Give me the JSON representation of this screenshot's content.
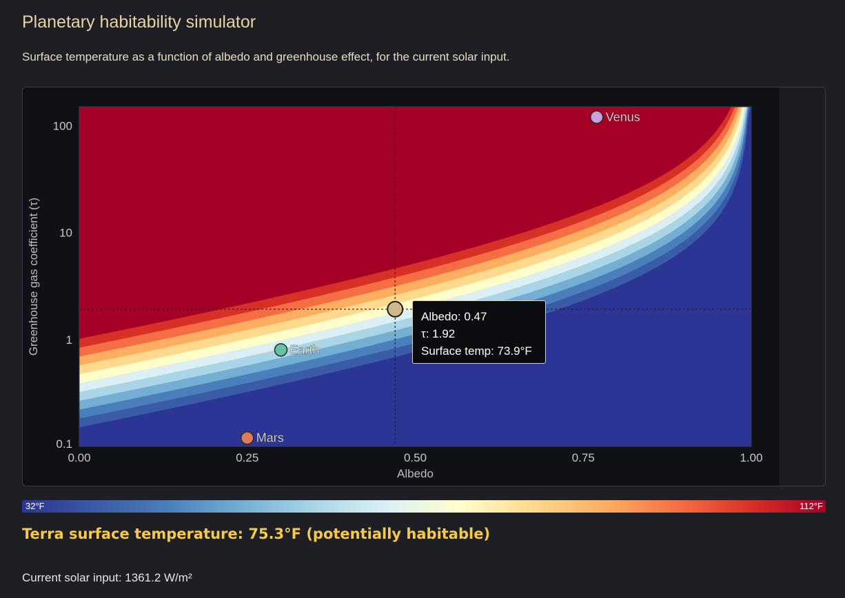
{
  "header": {
    "title": "Planetary habitability simulator",
    "subtitle": "Surface temperature as a function of albedo and greenhouse effect, for the current solar input."
  },
  "chart_data": {
    "type": "heatmap",
    "title": "",
    "xlabel": "Albedo",
    "ylabel": "Greenhouse gas coefficient (τ)",
    "xlim": [
      0,
      1
    ],
    "ylim": [
      0.1,
      150
    ],
    "y_scale": "log",
    "x_ticks": [
      "0.00",
      "0.25",
      "0.50",
      "0.75",
      "1.00"
    ],
    "x_tick_values": [
      0,
      0.25,
      0.5,
      0.75,
      1.0
    ],
    "y_ticks": [
      "0.1",
      "1",
      "10",
      "100"
    ],
    "y_tick_values": [
      0.1,
      1,
      10,
      100
    ],
    "temp_range_f": [
      32,
      112
    ],
    "colorscale": [
      "#2c3593",
      "#3a5ba6",
      "#4a7fbb",
      "#74aed2",
      "#a9d5e6",
      "#dcf0f4",
      "#fffecb",
      "#fed98e",
      "#fdae61",
      "#f46d43",
      "#d73027",
      "#a50026"
    ],
    "planets": [
      {
        "name": "Venus",
        "albedo": 0.77,
        "tau": 120,
        "color": "#c9a0dc"
      },
      {
        "name": "Earth",
        "albedo": 0.3,
        "tau": 0.8,
        "color": "#66c2a5"
      },
      {
        "name": "Mars",
        "albedo": 0.25,
        "tau": 0.12,
        "color": "#e07a5f"
      }
    ],
    "cursor": {
      "albedo": 0.47,
      "tau": 1.92
    },
    "tooltip": {
      "albedo": "Albedo: 0.47",
      "tau": "τ: 1.92",
      "temp": "Surface temp: 73.9°F"
    }
  },
  "colorbar": {
    "min_label": "32°F",
    "max_label": "112°F"
  },
  "status": {
    "result": "Terra surface temperature: 75.3°F (potentially habitable)",
    "solar_input": "Current solar input: 1361.2 W/m²"
  }
}
